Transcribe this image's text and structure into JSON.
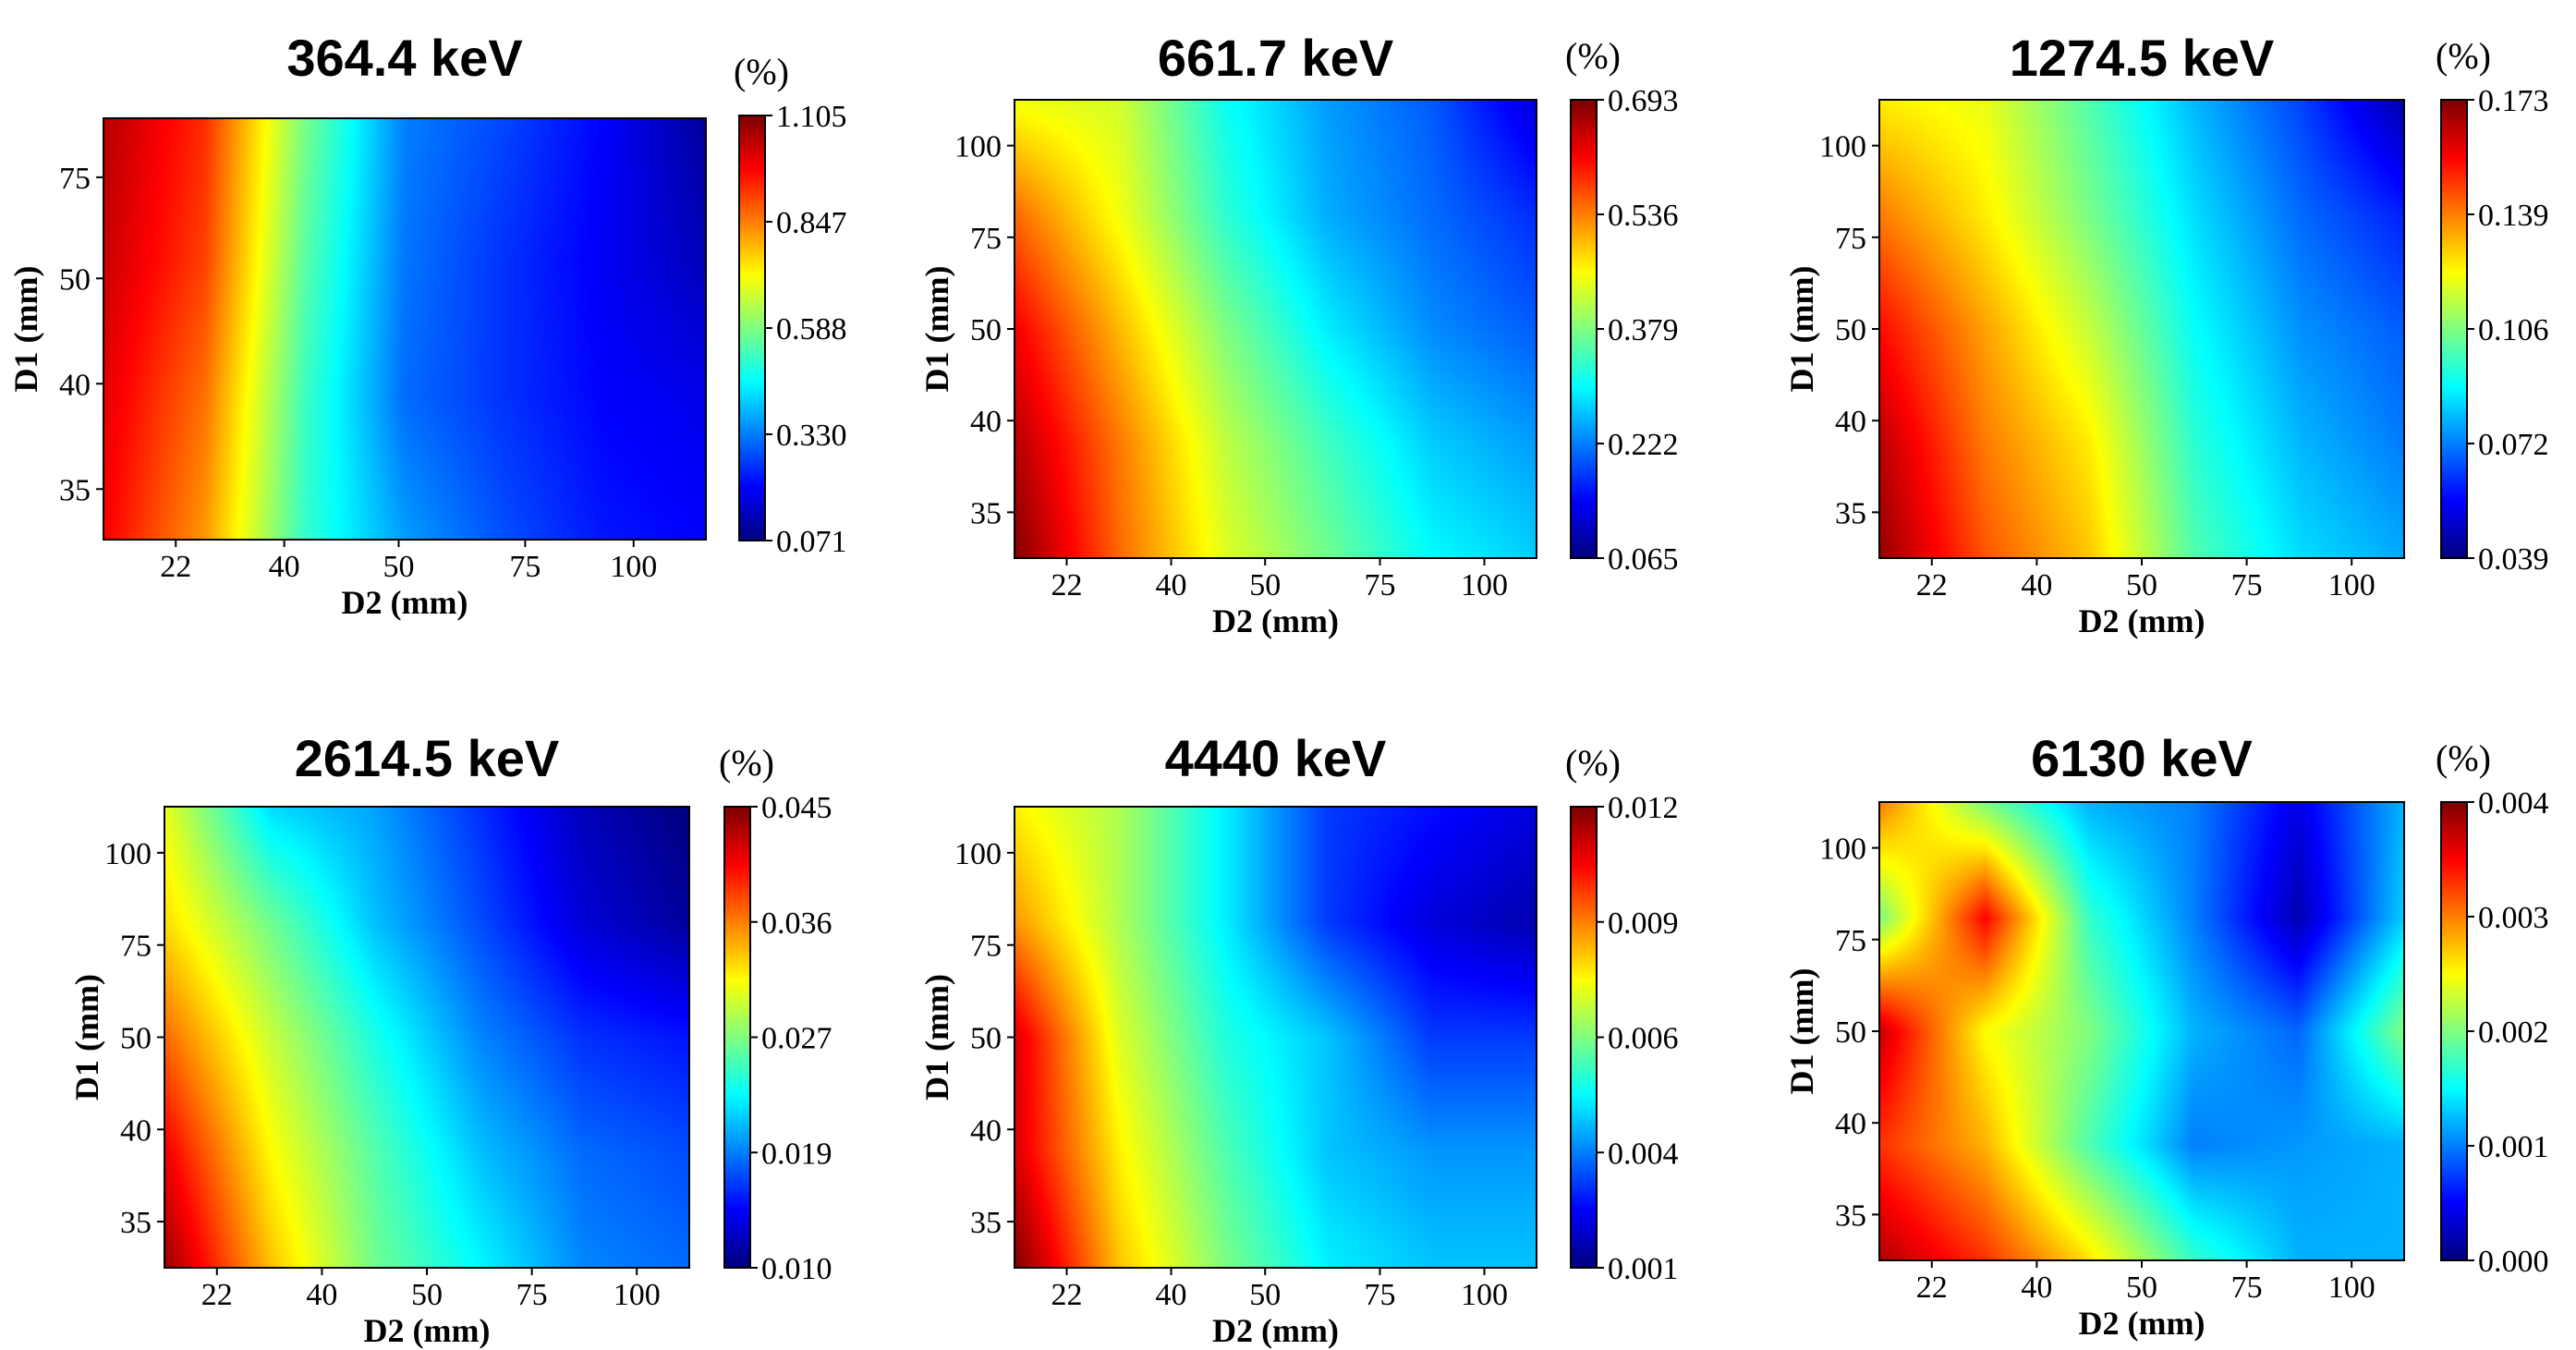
{
  "chart_data": [
    {
      "type": "heatmap",
      "title": "364.4 keV",
      "colorbar_unit": "(%)",
      "colorbar_ticks": [
        "1.105",
        "0.847",
        "0.588",
        "0.330",
        "0.071"
      ],
      "zlim": [
        0.071,
        1.105
      ],
      "xlabel": "D2 (mm)",
      "ylabel": "D1 (mm)",
      "x_ticks": [
        "22",
        "40",
        "50",
        "75",
        "100"
      ],
      "y_ticks": [
        "75",
        "50",
        "40",
        "35"
      ],
      "y_ticks_order": "top-to-bottom",
      "values": [
        [
          1.05,
          0.93,
          0.58,
          0.33,
          0.27,
          0.2,
          0.1
        ],
        [
          1.03,
          0.91,
          0.55,
          0.32,
          0.25,
          0.19,
          0.13
        ],
        [
          1.0,
          0.86,
          0.52,
          0.31,
          0.25,
          0.2,
          0.18
        ],
        [
          0.98,
          0.82,
          0.51,
          0.36,
          0.28,
          0.22,
          0.2
        ]
      ]
    },
    {
      "type": "heatmap",
      "title": "661.7 keV",
      "colorbar_unit": "(%)",
      "colorbar_ticks": [
        "0.693",
        "0.536",
        "0.379",
        "0.222",
        "0.065"
      ],
      "zlim": [
        0.065,
        0.693
      ],
      "xlabel": "D2 (mm)",
      "ylabel": "D1 (mm)",
      "x_ticks": [
        "22",
        "40",
        "50",
        "75",
        "100"
      ],
      "y_ticks": [
        "100",
        "75",
        "50",
        "40",
        "35"
      ],
      "y_ticks_order": "top-to-bottom",
      "values": [
        [
          0.45,
          0.43,
          0.31,
          0.24,
          0.2,
          0.12
        ],
        [
          0.55,
          0.45,
          0.33,
          0.25,
          0.21,
          0.17
        ],
        [
          0.62,
          0.5,
          0.38,
          0.29,
          0.23,
          0.2
        ],
        [
          0.66,
          0.54,
          0.42,
          0.34,
          0.27,
          0.24
        ],
        [
          0.69,
          0.55,
          0.44,
          0.37,
          0.3,
          0.27
        ]
      ]
    },
    {
      "type": "heatmap",
      "title": "1274.5 keV",
      "colorbar_unit": "(%)",
      "colorbar_ticks": [
        "0.173",
        "0.139",
        "0.106",
        "0.072",
        "0.039"
      ],
      "zlim": [
        0.039,
        0.173
      ],
      "xlabel": "D2 (mm)",
      "ylabel": "D1 (mm)",
      "x_ticks": [
        "22",
        "40",
        "50",
        "75",
        "100"
      ],
      "y_ticks": [
        "100",
        "75",
        "50",
        "40",
        "35"
      ],
      "y_ticks_order": "top-to-bottom",
      "values": [
        [
          0.125,
          0.12,
          0.1,
          0.08,
          0.065,
          0.045
        ],
        [
          0.14,
          0.125,
          0.105,
          0.085,
          0.07,
          0.06
        ],
        [
          0.155,
          0.135,
          0.115,
          0.09,
          0.075,
          0.068
        ],
        [
          0.165,
          0.14,
          0.125,
          0.095,
          0.08,
          0.072
        ],
        [
          0.17,
          0.145,
          0.13,
          0.1,
          0.085,
          0.078
        ]
      ]
    },
    {
      "type": "heatmap",
      "title": "2614.5 keV",
      "colorbar_unit": "(%)",
      "colorbar_ticks": [
        "0.045",
        "0.036",
        "0.027",
        "0.019",
        "0.010"
      ],
      "zlim": [
        0.01,
        0.045
      ],
      "xlabel": "D2 (mm)",
      "ylabel": "D1 (mm)",
      "x_ticks": [
        "22",
        "40",
        "50",
        "75",
        "100"
      ],
      "y_ticks": [
        "100",
        "75",
        "50",
        "40",
        "35"
      ],
      "y_ticks_order": "top-to-bottom",
      "values": [
        [
          0.031,
          0.022,
          0.02,
          0.016,
          0.012,
          0.01
        ],
        [
          0.033,
          0.027,
          0.021,
          0.017,
          0.013,
          0.011
        ],
        [
          0.037,
          0.03,
          0.024,
          0.019,
          0.016,
          0.015
        ],
        [
          0.041,
          0.032,
          0.026,
          0.021,
          0.018,
          0.017
        ],
        [
          0.044,
          0.034,
          0.027,
          0.023,
          0.019,
          0.018
        ]
      ]
    },
    {
      "type": "heatmap",
      "title": "4440 keV",
      "colorbar_unit": "(%)",
      "colorbar_ticks": [
        "0.012",
        "0.009",
        "0.006",
        "0.004",
        "0.001"
      ],
      "zlim": [
        0.001,
        0.012
      ],
      "xlabel": "D2 (mm)",
      "ylabel": "D1 (mm)",
      "x_ticks": [
        "22",
        "40",
        "50",
        "75",
        "100"
      ],
      "y_ticks": [
        "100",
        "75",
        "50",
        "40",
        "35"
      ],
      "y_ticks_order": "top-to-bottom",
      "values": [
        [
          0.008,
          0.007,
          0.005,
          0.003,
          0.0025,
          0.002
        ],
        [
          0.009,
          0.007,
          0.005,
          0.003,
          0.002,
          0.0015
        ],
        [
          0.011,
          0.0075,
          0.0055,
          0.0045,
          0.003,
          0.003
        ],
        [
          0.011,
          0.008,
          0.006,
          0.0045,
          0.004,
          0.004
        ],
        [
          0.012,
          0.0085,
          0.0065,
          0.005,
          0.0045,
          0.0045
        ]
      ]
    },
    {
      "type": "heatmap",
      "title": "6130 keV",
      "colorbar_unit": "(%)",
      "colorbar_ticks": [
        "0.004",
        "0.003",
        "0.002",
        "0.001",
        "0.000"
      ],
      "zlim": [
        0.0,
        0.004
      ],
      "xlabel": "D2 (mm)",
      "ylabel": "D1 (mm)",
      "x_ticks": [
        "22",
        "40",
        "50",
        "75",
        "100"
      ],
      "y_ticks": [
        "100",
        "75",
        "50",
        "40",
        "35"
      ],
      "y_ticks_order": "top-to-bottom",
      "values": [
        [
          0.003,
          0.002,
          0.0012,
          0.001,
          0.0004,
          0.0012
        ],
        [
          0.002,
          0.0035,
          0.0017,
          0.001,
          0.0002,
          0.0013
        ],
        [
          0.0037,
          0.0025,
          0.002,
          0.0012,
          0.0009,
          0.002
        ],
        [
          0.0033,
          0.0028,
          0.0018,
          0.001,
          0.0011,
          0.0012
        ],
        [
          0.0038,
          0.0033,
          0.0026,
          0.0017,
          0.0012,
          0.0012
        ]
      ]
    }
  ]
}
